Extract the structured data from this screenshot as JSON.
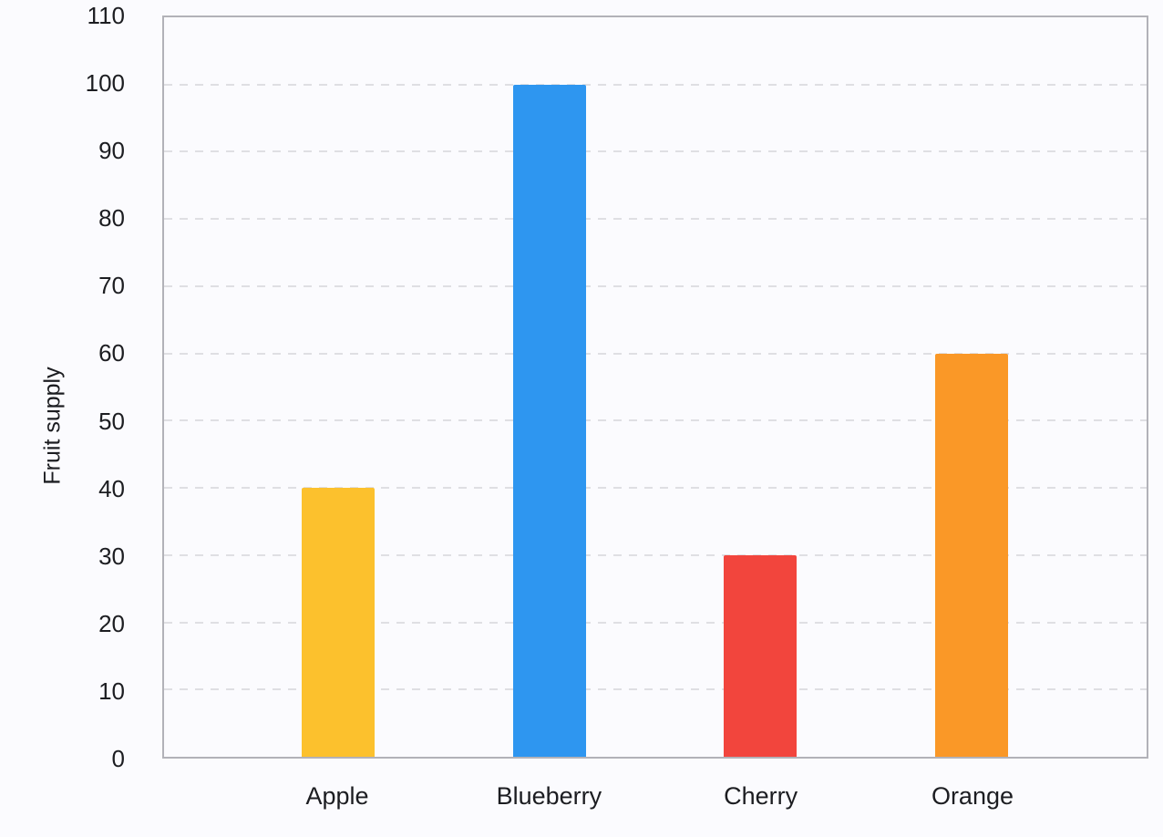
{
  "chart_data": {
    "type": "bar",
    "title": "",
    "categories": [
      "Apple",
      "Blueberry",
      "Cherry",
      "Orange"
    ],
    "values": [
      40,
      100,
      30,
      60
    ],
    "bar_colors": [
      "#fcc12d",
      "#2e96f0",
      "#f2453d",
      "#fa9827"
    ],
    "xlabel": "",
    "ylabel": "Fruit supply",
    "ylim": [
      0,
      110
    ],
    "yticks": [
      0,
      10,
      20,
      30,
      40,
      50,
      60,
      70,
      80,
      90,
      100,
      110
    ],
    "grid": "horizontal-dashed",
    "legend_position": "none"
  },
  "colors": {
    "background": "#fbfbfe",
    "plot_frame": "#b2b2b8",
    "gridline": "#dfdfe3",
    "text": "#1c1d21"
  }
}
